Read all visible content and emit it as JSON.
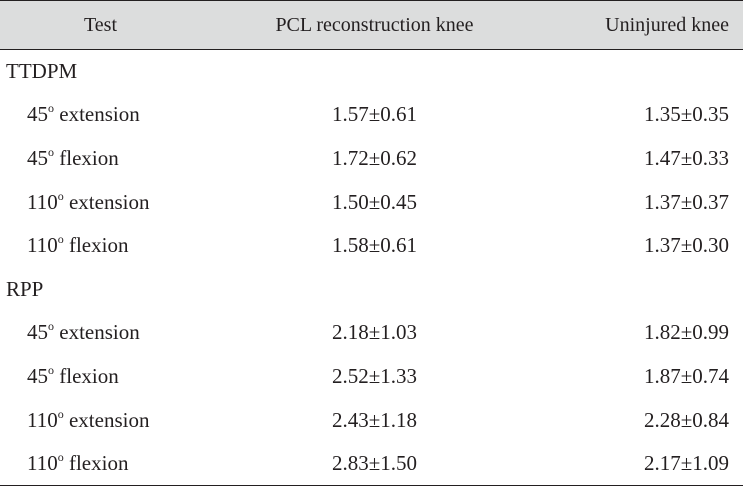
{
  "table": {
    "headers": {
      "test": "Test",
      "pcl": "PCL reconstruction knee",
      "uninjured": "Uninjured knee"
    },
    "sections": [
      {
        "name": "TTDPM",
        "rows": [
          {
            "angle": "45",
            "degree": "o",
            "motion": "extension",
            "pcl": "1.57±0.61",
            "uninjured": "1.35±0.35"
          },
          {
            "angle": "45",
            "degree": "o",
            "motion": "flexion",
            "pcl": "1.72±0.62",
            "uninjured": "1.47±0.33"
          },
          {
            "angle": "110",
            "degree": "o",
            "motion": "extension",
            "pcl": "1.50±0.45",
            "uninjured": "1.37±0.37"
          },
          {
            "angle": "110",
            "degree": "o",
            "motion": "flexion",
            "pcl": "1.58±0.61",
            "uninjured": "1.37±0.30"
          }
        ]
      },
      {
        "name": "RPP",
        "rows": [
          {
            "angle": "45",
            "degree": "o",
            "motion": "extension",
            "pcl": "2.18±1.03",
            "uninjured": "1.82±0.99"
          },
          {
            "angle": "45",
            "degree": "o",
            "motion": "flexion",
            "pcl": "2.52±1.33",
            "uninjured": "1.87±0.74"
          },
          {
            "angle": "110",
            "degree": "o",
            "motion": "extension",
            "pcl": "2.43±1.18",
            "uninjured": "2.28±0.84"
          },
          {
            "angle": "110",
            "degree": "o",
            "motion": "flexion",
            "pcl": "2.83±1.50",
            "uninjured": "2.17±1.09"
          }
        ]
      }
    ]
  }
}
